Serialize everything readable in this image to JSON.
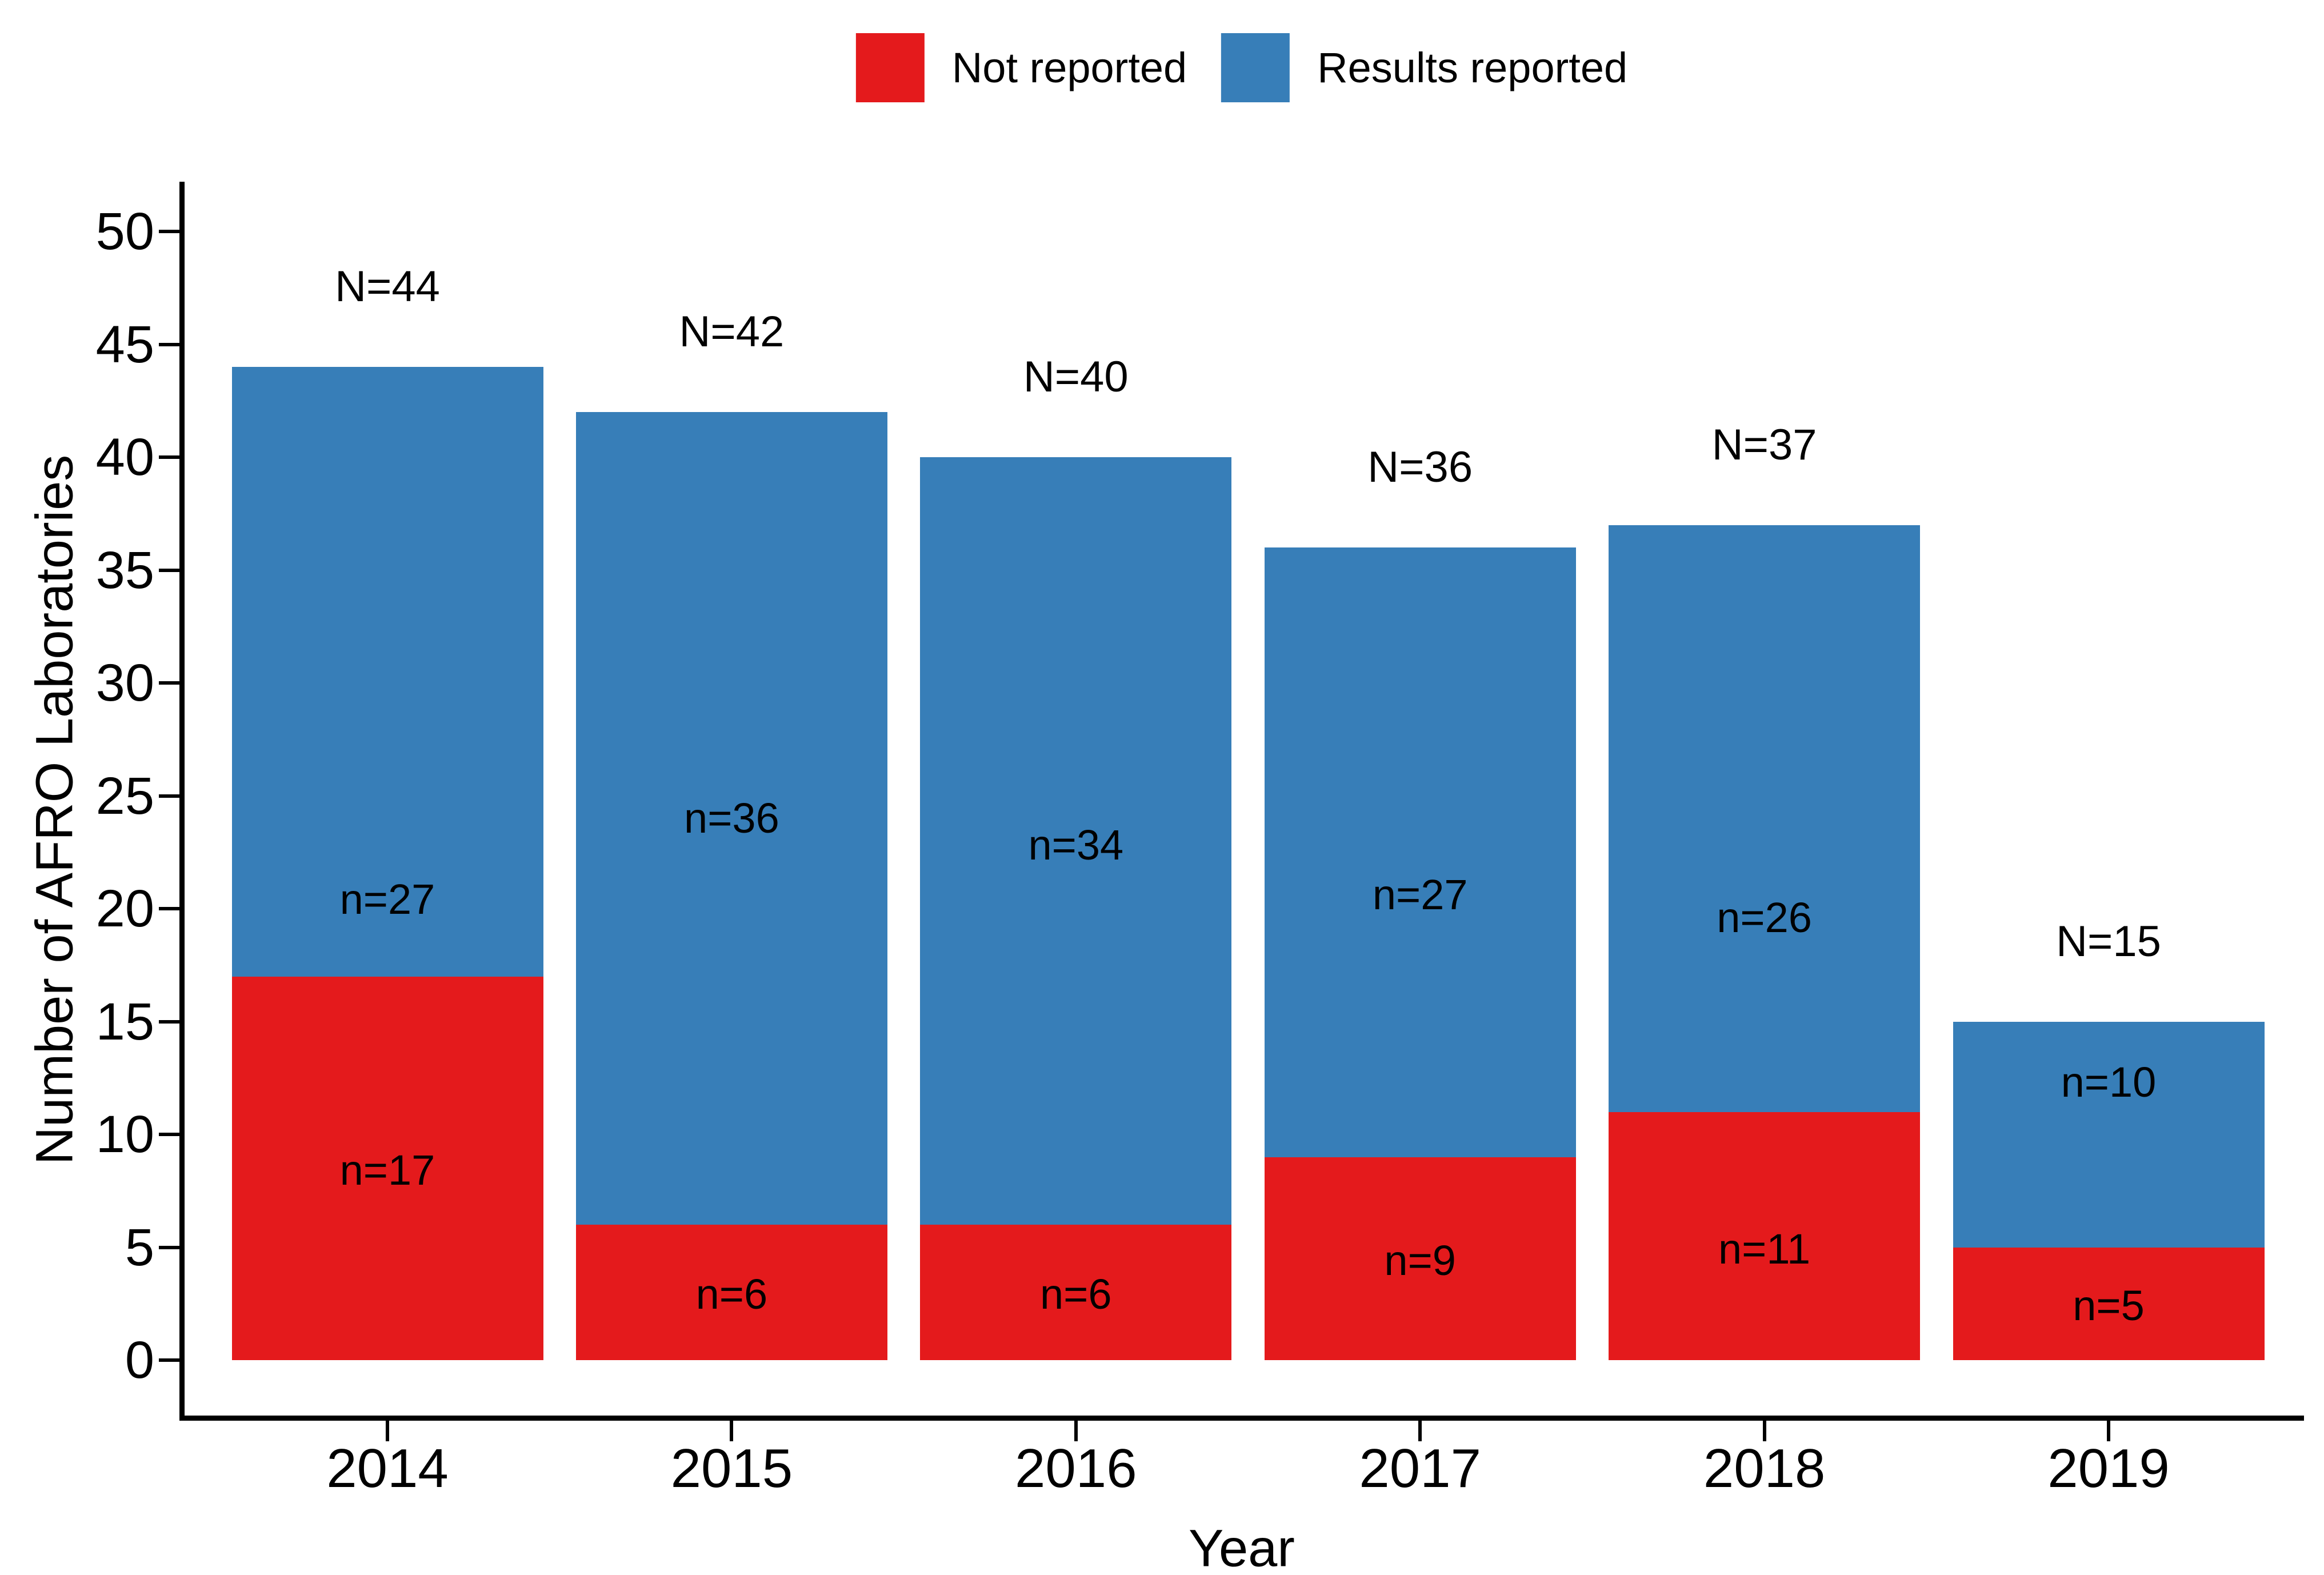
{
  "chart_data": {
    "type": "bar",
    "stacked": true,
    "title": "",
    "xlabel": "Year",
    "ylabel": "Number of AFRO Laboratories",
    "ylim": [
      0,
      50
    ],
    "ytick_step": 5,
    "yticks": [
      0,
      5,
      10,
      15,
      20,
      25,
      30,
      35,
      40,
      45,
      50
    ],
    "grid": false,
    "legend_position": "top-center",
    "categories": [
      "2014",
      "2015",
      "2016",
      "2017",
      "2018",
      "2019"
    ],
    "legend": [
      {
        "name": "Not reported",
        "color": "#e41a1c"
      },
      {
        "name": "Results reported",
        "color": "#377eb8"
      }
    ],
    "series": [
      {
        "name": "Not reported",
        "color": "#e41a1c",
        "values": [
          17,
          6,
          6,
          9,
          11,
          5
        ],
        "labels": [
          "n=17",
          "n=6",
          "n=6",
          "n=9",
          "n=11",
          "n=5"
        ],
        "label_at": [
          8.4,
          2.9,
          2.9,
          4.4,
          4.9,
          2.4
        ]
      },
      {
        "name": "Results reported",
        "color": "#377eb8",
        "values": [
          27,
          36,
          34,
          27,
          26,
          10
        ],
        "labels": [
          "n=27",
          "n=36",
          "n=34",
          "n=27",
          "n=26",
          "n=10"
        ],
        "label_at": [
          20.4,
          24.0,
          22.8,
          20.6,
          19.6,
          12.3
        ]
      }
    ],
    "totals": [
      44,
      42,
      40,
      36,
      37,
      15
    ],
    "total_labels": [
      "N=44",
      "N=42",
      "N=40",
      "N=36",
      "N=37",
      "N=15"
    ]
  }
}
